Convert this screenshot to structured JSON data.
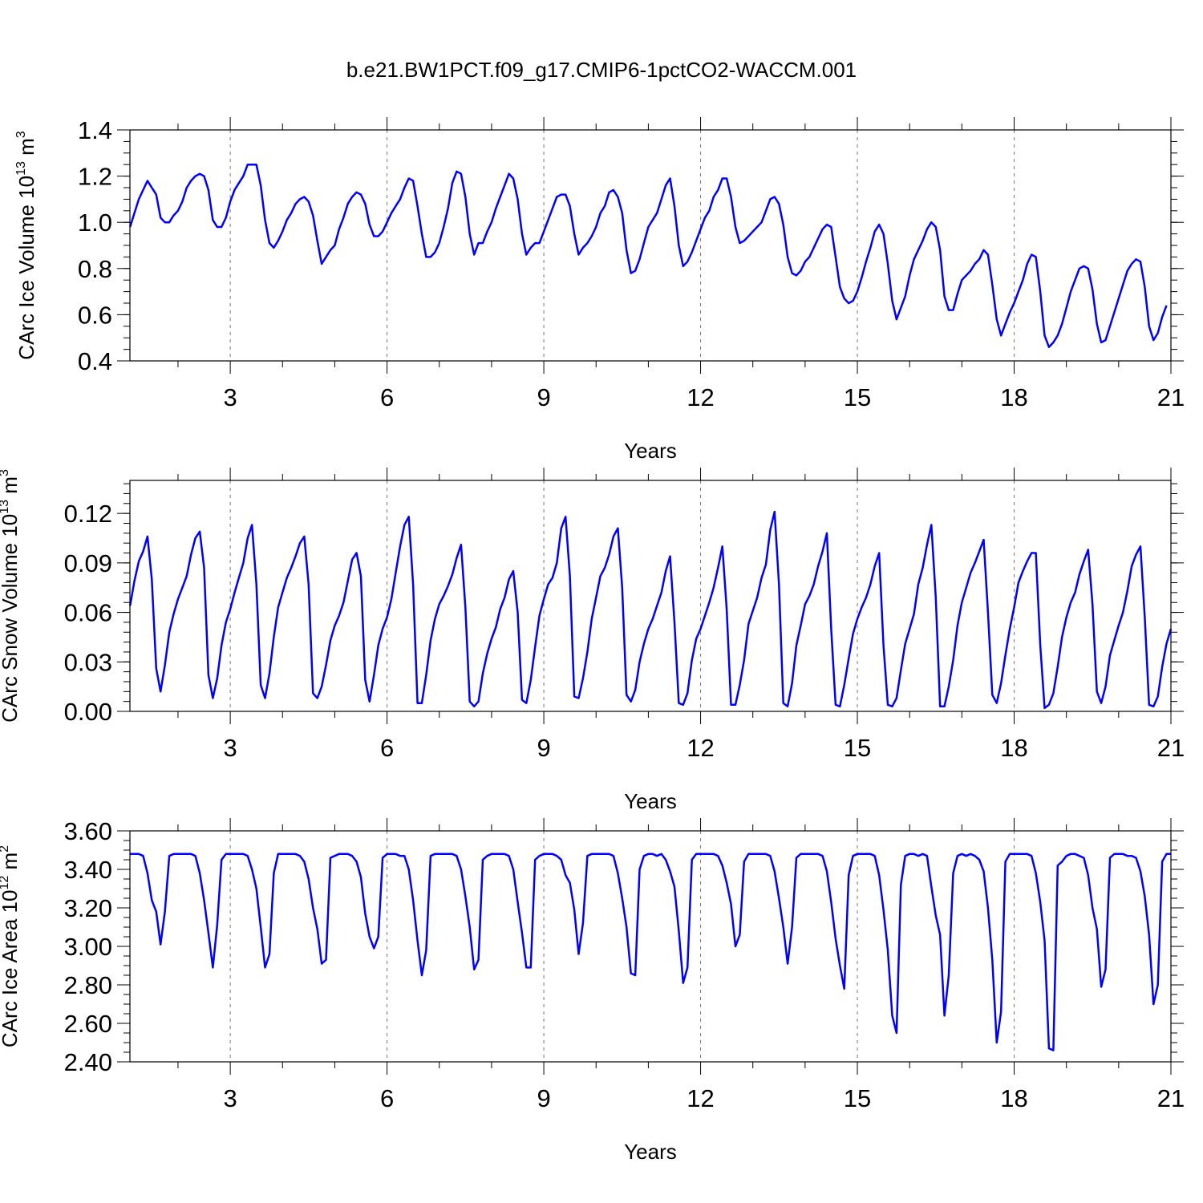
{
  "title": "b.e21.BW1PCT.f09_g17.CMIP6-1pctCO2-WACCM.001",
  "colors": {
    "series": "#0000ff",
    "axes": "#000000",
    "grid": "#777777"
  },
  "chart_data": [
    {
      "type": "line",
      "title": "b.e21.BW1PCT.f09_g17.CMIP6-1pctCO2-WACCM.001",
      "xlabel": "Years",
      "ylabel_main": "CArc Ice Volume 10",
      "ylabel_exp": "13",
      "ylabel_unit": " m",
      "ylabel_unit_exp": "3",
      "xlim": [
        1.08,
        21.0
      ],
      "ylim": [
        0.4,
        1.4
      ],
      "x_ticks": [
        3,
        6,
        9,
        12,
        15,
        18,
        21
      ],
      "x_tick_labels": [
        "3",
        "6",
        "9",
        "12",
        "15",
        "18",
        "21"
      ],
      "y_ticks": [
        0.4,
        0.6,
        0.8,
        1.0,
        1.2,
        1.4
      ],
      "y_tick_labels": [
        "0.4",
        "0.6",
        "0.8",
        "1.0",
        "1.2",
        "1.4"
      ],
      "grid": "dashed vertical at major x ticks",
      "series": [
        {
          "name": "CArc Ice Volume",
          "x_start": 1.083,
          "x_step": 0.0833333,
          "values": [
            0.98,
            1.04,
            1.1,
            1.14,
            1.18,
            1.15,
            1.12,
            1.02,
            1.0,
            1.0,
            1.03,
            1.05,
            1.09,
            1.15,
            1.18,
            1.2,
            1.21,
            1.2,
            1.14,
            1.01,
            0.98,
            0.98,
            1.02,
            1.09,
            1.14,
            1.17,
            1.2,
            1.25,
            1.25,
            1.25,
            1.16,
            1.01,
            0.91,
            0.89,
            0.92,
            0.96,
            1.01,
            1.04,
            1.08,
            1.1,
            1.11,
            1.09,
            1.03,
            0.92,
            0.82,
            0.85,
            0.88,
            0.9,
            0.97,
            1.02,
            1.08,
            1.11,
            1.13,
            1.12,
            1.08,
            0.99,
            0.94,
            0.94,
            0.96,
            1.0,
            1.04,
            1.07,
            1.1,
            1.15,
            1.19,
            1.18,
            1.07,
            0.95,
            0.85,
            0.85,
            0.87,
            0.91,
            0.98,
            1.06,
            1.17,
            1.22,
            1.21,
            1.11,
            0.95,
            0.86,
            0.91,
            0.91,
            0.96,
            1.0,
            1.06,
            1.11,
            1.16,
            1.21,
            1.19,
            1.1,
            0.95,
            0.86,
            0.89,
            0.91,
            0.91,
            0.96,
            1.01,
            1.06,
            1.11,
            1.12,
            1.12,
            1.07,
            0.95,
            0.86,
            0.89,
            0.91,
            0.94,
            0.98,
            1.04,
            1.07,
            1.13,
            1.14,
            1.11,
            1.04,
            0.88,
            0.78,
            0.79,
            0.84,
            0.91,
            0.98,
            1.01,
            1.04,
            1.1,
            1.16,
            1.19,
            1.07,
            0.9,
            0.81,
            0.83,
            0.87,
            0.92,
            0.97,
            1.02,
            1.05,
            1.11,
            1.14,
            1.19,
            1.19,
            1.11,
            0.98,
            0.91,
            0.92,
            0.94,
            0.96,
            0.98,
            1.0,
            1.05,
            1.1,
            1.11,
            1.08,
            0.99,
            0.85,
            0.78,
            0.77,
            0.79,
            0.83,
            0.85,
            0.89,
            0.93,
            0.97,
            0.99,
            0.98,
            0.85,
            0.72,
            0.67,
            0.65,
            0.66,
            0.7,
            0.76,
            0.83,
            0.89,
            0.96,
            0.99,
            0.95,
            0.82,
            0.66,
            0.58,
            0.63,
            0.68,
            0.77,
            0.84,
            0.88,
            0.92,
            0.97,
            1.0,
            0.98,
            0.88,
            0.68,
            0.62,
            0.62,
            0.69,
            0.75,
            0.77,
            0.79,
            0.82,
            0.84,
            0.88,
            0.86,
            0.73,
            0.58,
            0.51,
            0.56,
            0.61,
            0.65,
            0.7,
            0.75,
            0.82,
            0.86,
            0.85,
            0.7,
            0.51,
            0.46,
            0.48,
            0.51,
            0.56,
            0.63,
            0.7,
            0.75,
            0.8,
            0.81,
            0.8,
            0.71,
            0.56,
            0.48,
            0.49,
            0.55,
            0.61,
            0.67,
            0.73,
            0.79,
            0.82,
            0.84,
            0.83,
            0.72,
            0.55,
            0.49,
            0.52,
            0.59,
            0.64
          ]
        }
      ]
    },
    {
      "type": "line",
      "xlabel": "Years",
      "ylabel_main": "CArc Snow Volume 10",
      "ylabel_exp": "13",
      "ylabel_unit": " m",
      "ylabel_unit_exp": "3",
      "xlim": [
        1.08,
        21.0
      ],
      "ylim": [
        0.0,
        0.14
      ],
      "x_ticks": [
        3,
        6,
        9,
        12,
        15,
        18,
        21
      ],
      "x_tick_labels": [
        "3",
        "6",
        "9",
        "12",
        "15",
        "18",
        "21"
      ],
      "y_ticks": [
        0.0,
        0.03,
        0.06,
        0.09,
        0.12
      ],
      "y_tick_labels": [
        "0.00",
        "0.03",
        "0.06",
        "0.09",
        "0.12"
      ],
      "grid": "dashed vertical at major x ticks",
      "series": [
        {
          "name": "CArc Snow Volume",
          "x_start": 1.083,
          "x_step": 0.0833333,
          "values": [
            0.064,
            0.079,
            0.091,
            0.097,
            0.106,
            0.08,
            0.026,
            0.012,
            0.028,
            0.048,
            0.059,
            0.068,
            0.075,
            0.082,
            0.095,
            0.105,
            0.109,
            0.087,
            0.022,
            0.008,
            0.02,
            0.04,
            0.054,
            0.062,
            0.072,
            0.081,
            0.09,
            0.105,
            0.113,
            0.077,
            0.016,
            0.008,
            0.023,
            0.045,
            0.063,
            0.072,
            0.081,
            0.087,
            0.094,
            0.102,
            0.106,
            0.077,
            0.011,
            0.008,
            0.015,
            0.028,
            0.043,
            0.052,
            0.058,
            0.066,
            0.079,
            0.092,
            0.096,
            0.082,
            0.019,
            0.006,
            0.022,
            0.04,
            0.05,
            0.057,
            0.068,
            0.084,
            0.1,
            0.113,
            0.118,
            0.077,
            0.005,
            0.005,
            0.022,
            0.043,
            0.056,
            0.065,
            0.07,
            0.076,
            0.083,
            0.093,
            0.101,
            0.063,
            0.006,
            0.003,
            0.006,
            0.023,
            0.035,
            0.044,
            0.051,
            0.062,
            0.069,
            0.08,
            0.085,
            0.06,
            0.007,
            0.005,
            0.019,
            0.039,
            0.058,
            0.068,
            0.077,
            0.081,
            0.09,
            0.111,
            0.118,
            0.082,
            0.009,
            0.008,
            0.02,
            0.036,
            0.056,
            0.069,
            0.082,
            0.087,
            0.095,
            0.106,
            0.111,
            0.075,
            0.01,
            0.006,
            0.013,
            0.03,
            0.041,
            0.05,
            0.056,
            0.064,
            0.072,
            0.085,
            0.094,
            0.054,
            0.005,
            0.004,
            0.011,
            0.031,
            0.044,
            0.05,
            0.058,
            0.066,
            0.075,
            0.087,
            0.1,
            0.062,
            0.004,
            0.004,
            0.016,
            0.031,
            0.053,
            0.061,
            0.069,
            0.081,
            0.089,
            0.11,
            0.121,
            0.077,
            0.005,
            0.003,
            0.017,
            0.04,
            0.052,
            0.065,
            0.07,
            0.077,
            0.088,
            0.097,
            0.108,
            0.05,
            0.004,
            0.003,
            0.016,
            0.032,
            0.047,
            0.056,
            0.063,
            0.069,
            0.077,
            0.088,
            0.096,
            0.04,
            0.004,
            0.003,
            0.008,
            0.025,
            0.041,
            0.05,
            0.059,
            0.077,
            0.087,
            0.101,
            0.113,
            0.069,
            0.003,
            0.003,
            0.015,
            0.031,
            0.052,
            0.066,
            0.075,
            0.084,
            0.09,
            0.097,
            0.104,
            0.06,
            0.01,
            0.005,
            0.017,
            0.034,
            0.05,
            0.063,
            0.078,
            0.085,
            0.091,
            0.096,
            0.096,
            0.04,
            0.002,
            0.004,
            0.011,
            0.027,
            0.045,
            0.057,
            0.066,
            0.072,
            0.083,
            0.091,
            0.098,
            0.065,
            0.012,
            0.005,
            0.015,
            0.034,
            0.043,
            0.052,
            0.06,
            0.073,
            0.088,
            0.095,
            0.1,
            0.057,
            0.004,
            0.003,
            0.009,
            0.027,
            0.041,
            0.05
          ]
        }
      ]
    },
    {
      "type": "line",
      "xlabel": "Years",
      "ylabel_main": "CArc Ice Area 10",
      "ylabel_exp": "12",
      "ylabel_unit": " m",
      "ylabel_unit_exp": "2",
      "xlim": [
        1.08,
        21.0
      ],
      "ylim": [
        2.4,
        3.6
      ],
      "x_ticks": [
        3,
        6,
        9,
        12,
        15,
        18,
        21
      ],
      "x_tick_labels": [
        "3",
        "6",
        "9",
        "12",
        "15",
        "18",
        "21"
      ],
      "y_ticks": [
        2.4,
        2.6,
        2.8,
        3.0,
        3.2,
        3.4,
        3.6
      ],
      "y_tick_labels": [
        "2.40",
        "2.60",
        "2.80",
        "3.00",
        "3.20",
        "3.40",
        "3.60"
      ],
      "grid": "dashed vertical at major x ticks",
      "series": [
        {
          "name": "CArc Ice Area",
          "x_start": 1.083,
          "x_step": 0.0833333,
          "values": [
            3.48,
            3.48,
            3.48,
            3.47,
            3.38,
            3.24,
            3.18,
            3.01,
            3.18,
            3.47,
            3.48,
            3.48,
            3.48,
            3.48,
            3.48,
            3.47,
            3.38,
            3.24,
            3.07,
            2.89,
            3.11,
            3.45,
            3.48,
            3.48,
            3.48,
            3.48,
            3.48,
            3.47,
            3.4,
            3.3,
            3.1,
            2.89,
            2.96,
            3.38,
            3.48,
            3.48,
            3.48,
            3.48,
            3.48,
            3.47,
            3.44,
            3.35,
            3.2,
            3.09,
            2.91,
            2.93,
            3.46,
            3.47,
            3.48,
            3.48,
            3.48,
            3.47,
            3.44,
            3.36,
            3.17,
            3.05,
            2.99,
            3.05,
            3.46,
            3.48,
            3.48,
            3.48,
            3.47,
            3.47,
            3.4,
            3.24,
            3.03,
            2.85,
            2.98,
            3.47,
            3.48,
            3.48,
            3.48,
            3.48,
            3.48,
            3.47,
            3.4,
            3.26,
            3.1,
            2.88,
            2.93,
            3.45,
            3.47,
            3.48,
            3.48,
            3.48,
            3.48,
            3.47,
            3.4,
            3.23,
            3.07,
            2.89,
            2.89,
            3.45,
            3.47,
            3.48,
            3.48,
            3.48,
            3.47,
            3.45,
            3.37,
            3.33,
            3.19,
            2.96,
            3.12,
            3.47,
            3.48,
            3.48,
            3.48,
            3.48,
            3.48,
            3.47,
            3.38,
            3.25,
            3.1,
            2.86,
            2.85,
            3.4,
            3.47,
            3.48,
            3.48,
            3.47,
            3.48,
            3.45,
            3.39,
            3.31,
            3.08,
            2.81,
            2.89,
            3.45,
            3.48,
            3.48,
            3.48,
            3.48,
            3.48,
            3.47,
            3.42,
            3.33,
            3.22,
            3.0,
            3.06,
            3.44,
            3.48,
            3.48,
            3.48,
            3.48,
            3.48,
            3.47,
            3.39,
            3.25,
            3.1,
            2.91,
            3.1,
            3.46,
            3.48,
            3.48,
            3.48,
            3.48,
            3.48,
            3.47,
            3.39,
            3.23,
            3.04,
            2.9,
            2.78,
            3.37,
            3.47,
            3.48,
            3.48,
            3.48,
            3.48,
            3.47,
            3.37,
            3.19,
            2.98,
            2.64,
            2.55,
            3.32,
            3.47,
            3.48,
            3.48,
            3.47,
            3.48,
            3.47,
            3.31,
            3.16,
            3.06,
            2.64,
            2.85,
            3.38,
            3.47,
            3.48,
            3.47,
            3.48,
            3.47,
            3.45,
            3.39,
            3.2,
            2.93,
            2.5,
            2.66,
            3.44,
            3.48,
            3.48,
            3.48,
            3.48,
            3.48,
            3.47,
            3.38,
            3.23,
            3.03,
            2.47,
            2.46,
            3.42,
            3.44,
            3.47,
            3.48,
            3.48,
            3.47,
            3.46,
            3.37,
            3.2,
            3.09,
            2.79,
            2.88,
            3.46,
            3.48,
            3.48,
            3.48,
            3.47,
            3.47,
            3.46,
            3.39,
            3.26,
            3.06,
            2.7,
            2.8,
            3.44,
            3.48,
            3.48
          ]
        }
      ]
    }
  ]
}
